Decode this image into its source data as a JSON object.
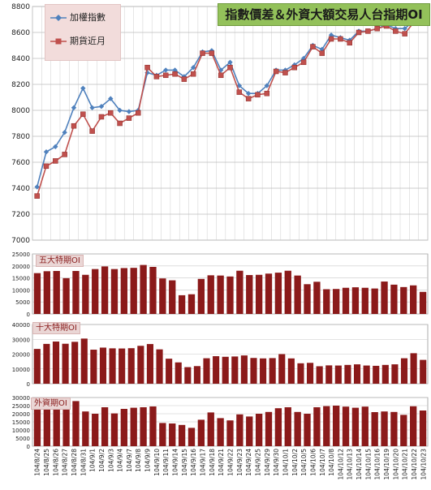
{
  "chart_data": [
    {
      "type": "line",
      "title": "指數價差＆外資大額交易人台指期OI",
      "ylim": [
        7000,
        8800
      ],
      "yticks": [
        7000,
        7200,
        7400,
        7600,
        7800,
        8000,
        8200,
        8400,
        8600,
        8800
      ],
      "grid": true,
      "legend": "top-left",
      "categories": [
        "104/8/24",
        "104/8/25",
        "104/8/26",
        "104/8/27",
        "104/8/28",
        "104/8/31",
        "104/9/1",
        "104/9/2",
        "104/9/3",
        "104/9/4",
        "104/9/7",
        "104/9/8",
        "104/9/9",
        "104/9/10",
        "104/9/11",
        "104/9/14",
        "104/9/15",
        "104/9/16",
        "104/9/17",
        "104/9/18",
        "104/9/21",
        "104/9/22",
        "104/9/23",
        "104/9/24",
        "104/9/25",
        "104/9/29",
        "104/9/30",
        "104/10/1",
        "104/10/2",
        "104/10/5",
        "104/10/6",
        "104/10/7",
        "104/10/8",
        "104/10/12",
        "104/10/13",
        "104/10/14",
        "104/10/15",
        "104/10/16",
        "104/10/19",
        "104/10/20",
        "104/10/21",
        "104/10/22",
        "104/10/23"
      ],
      "series": [
        {
          "name": "加權指數",
          "color": "#4f81bd",
          "marker": "diamond",
          "values": [
            7410,
            7680,
            7720,
            7830,
            8020,
            8170,
            8020,
            8030,
            8090,
            8000,
            7990,
            8000,
            8290,
            8270,
            8310,
            8310,
            8260,
            8330,
            8450,
            8460,
            8310,
            8370,
            8190,
            8130,
            8130,
            8190,
            8310,
            8310,
            8350,
            8400,
            8500,
            8470,
            8580,
            8560,
            8540,
            8610,
            8610,
            8630,
            8660,
            8630,
            8630,
            8690,
            8800
          ]
        },
        {
          "name": "期貨近月",
          "color": "#c0504d",
          "marker": "square",
          "values": [
            7340,
            7570,
            7610,
            7660,
            7880,
            7970,
            7840,
            7950,
            7980,
            7900,
            7940,
            7980,
            8330,
            8260,
            8270,
            8280,
            8240,
            8280,
            8440,
            8440,
            8270,
            8330,
            8140,
            8090,
            8120,
            8130,
            8300,
            8290,
            8330,
            8370,
            8490,
            8440,
            8550,
            8550,
            8520,
            8600,
            8610,
            8630,
            8650,
            8610,
            8590,
            8680,
            8780
          ]
        }
      ]
    },
    {
      "type": "bar",
      "title": "五大特期OI",
      "ylim": [
        0,
        25000
      ],
      "yticks": [
        0,
        5000,
        10000,
        15000,
        20000,
        25000
      ],
      "grid": true,
      "color": "#8b1a1a",
      "values": [
        17000,
        17800,
        17900,
        14900,
        17900,
        16300,
        18700,
        19800,
        18700,
        19100,
        19200,
        20400,
        19600,
        14800,
        14000,
        7800,
        8200,
        14600,
        16100,
        16000,
        15600,
        18000,
        16200,
        16300,
        16800,
        17200,
        18000,
        16000,
        12400,
        13400,
        10300,
        10400,
        10900,
        11100,
        10900,
        10600,
        13500,
        12200,
        11200,
        11900,
        9200
      ]
    },
    {
      "type": "bar",
      "title": "十大特期OI",
      "ylim": [
        0,
        40000
      ],
      "yticks": [
        0,
        10000,
        20000,
        30000,
        40000
      ],
      "grid": true,
      "color": "#8b1a1a",
      "values": [
        23500,
        26900,
        28500,
        27000,
        28300,
        30500,
        23000,
        24400,
        23900,
        23800,
        24000,
        25600,
        26800,
        23200,
        16900,
        14400,
        11200,
        11900,
        17200,
        18600,
        18200,
        18400,
        19100,
        17400,
        17100,
        17300,
        20000,
        17100,
        13800,
        14100,
        11800,
        12400,
        12300,
        12700,
        13100,
        12300,
        12100,
        12700,
        13100,
        17200,
        20600,
        16100
      ]
    },
    {
      "type": "bar",
      "title": "外資期OI",
      "ylim": [
        0,
        30000
      ],
      "yticks": [
        0,
        5000,
        10000,
        15000,
        20000,
        25000,
        30000
      ],
      "grid": true,
      "color": "#8b1a1a",
      "values": [
        24500,
        25900,
        24600,
        23300,
        27800,
        21400,
        20000,
        24000,
        20200,
        23000,
        23700,
        24000,
        24500,
        14300,
        14000,
        13100,
        11300,
        16300,
        20800,
        17300,
        15900,
        19600,
        18300,
        20000,
        21100,
        23400,
        24000,
        21100,
        20000,
        24000,
        24700,
        25000,
        24400,
        23700,
        24400,
        21000,
        21400,
        21100,
        19300,
        24600,
        22000
      ]
    }
  ]
}
